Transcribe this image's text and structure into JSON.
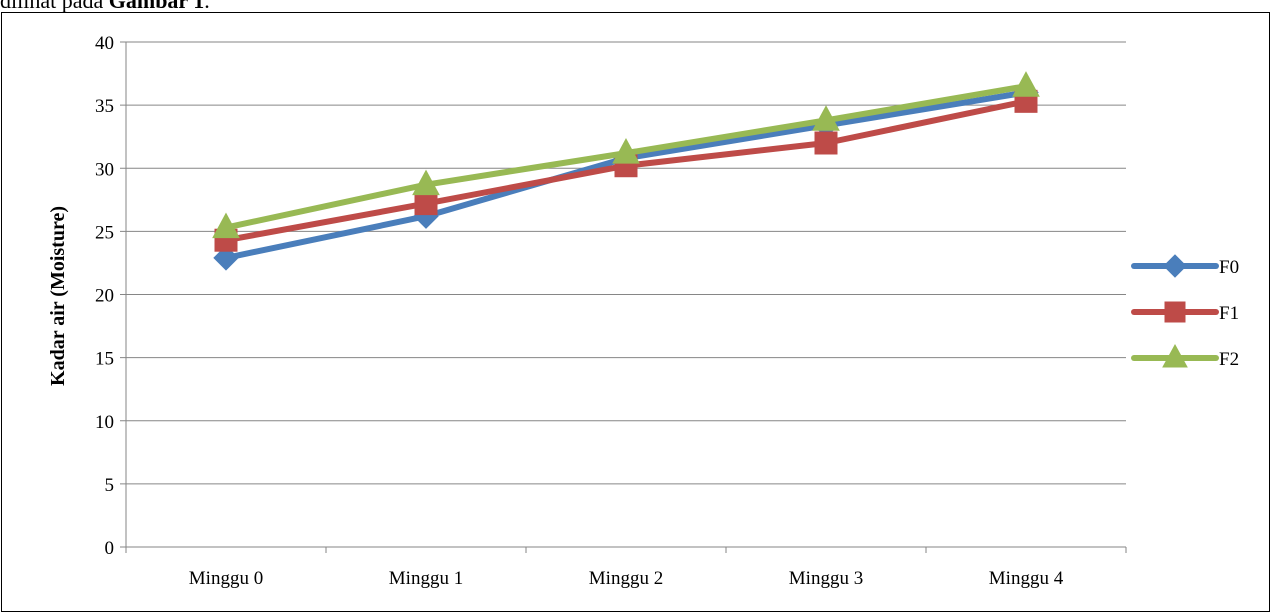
{
  "intro": {
    "prefix": "dilihat pada ",
    "bold": "Gambar 1",
    "suffix": "."
  },
  "chart_data": {
    "type": "line",
    "title": "",
    "xlabel": "",
    "ylabel": "Kadar air (Moisture)",
    "ylim": [
      0,
      40
    ],
    "yticks": [
      0,
      5,
      10,
      15,
      20,
      25,
      30,
      35,
      40
    ],
    "grid": true,
    "legend": "right",
    "categories": [
      "Minggu 0",
      "Minggu 1",
      "Minggu 2",
      "Minggu 3",
      "Minggu 4"
    ],
    "series": [
      {
        "name": "F0",
        "values": [
          22.9,
          26.2,
          30.8,
          33.4,
          36.0
        ],
        "color": "#4A7EBB",
        "marker": "diamond"
      },
      {
        "name": "F1",
        "values": [
          24.3,
          27.2,
          30.2,
          32.0,
          35.3
        ],
        "color": "#BE4B48",
        "marker": "square"
      },
      {
        "name": "F2",
        "values": [
          25.3,
          28.7,
          31.2,
          33.8,
          36.5
        ],
        "color": "#98B954",
        "marker": "triangle"
      }
    ]
  }
}
